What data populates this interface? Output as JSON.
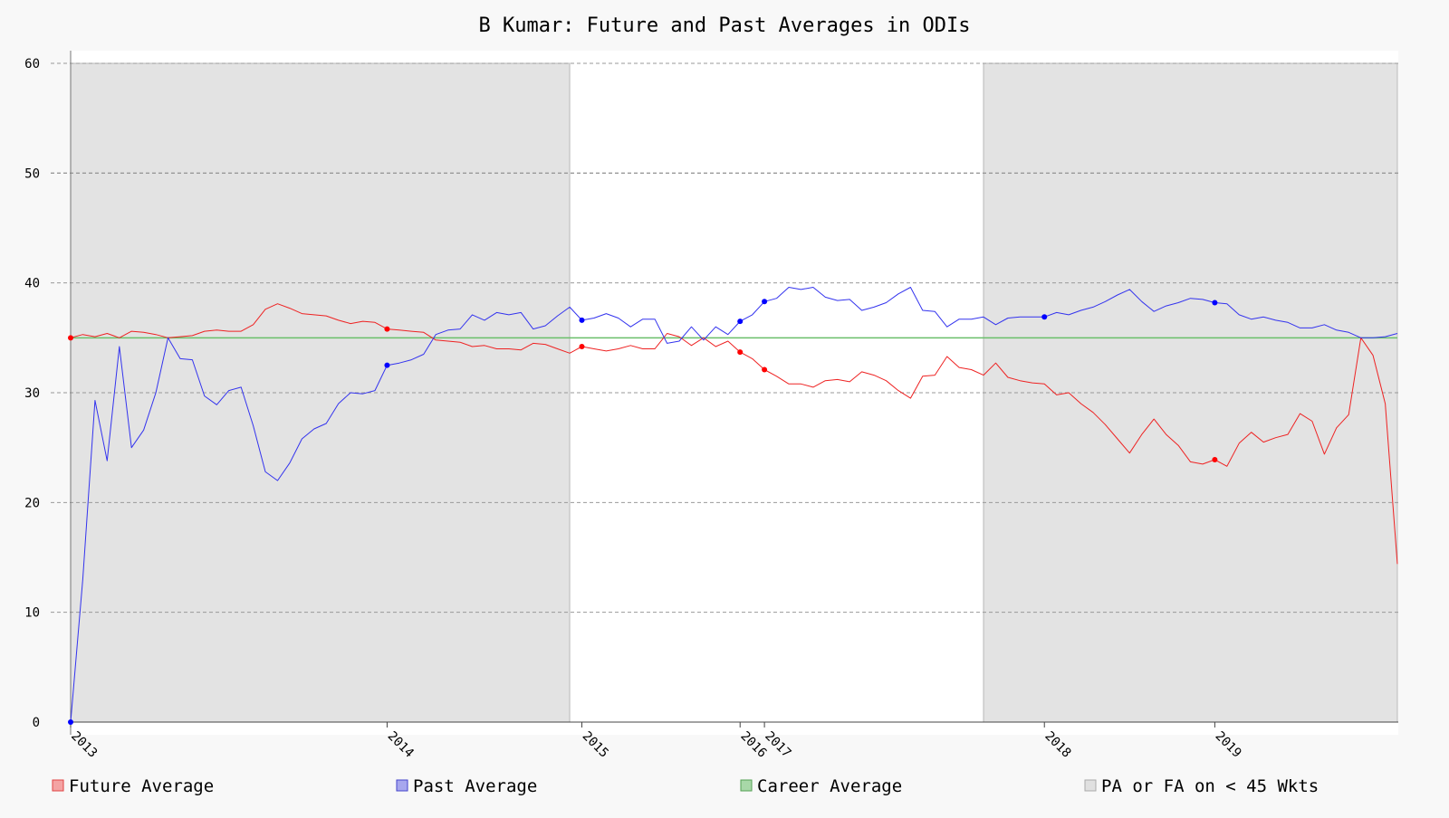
{
  "chart_data": {
    "type": "line",
    "title": "B Kumar: Future and Past Averages in ODIs",
    "ylim": [
      0,
      60
    ],
    "yticks": [
      0,
      10,
      20,
      30,
      40,
      50,
      60
    ],
    "xlim": [
      0,
      109
    ],
    "xticks": [
      {
        "label": "2013",
        "x": 0
      },
      {
        "label": "2014",
        "x": 26
      },
      {
        "label": "2015",
        "x": 42
      },
      {
        "label": "2016",
        "x": 55
      },
      {
        "label": "2017",
        "x": 57
      },
      {
        "label": "2018",
        "x": 80
      },
      {
        "label": "2019",
        "x": 94
      }
    ],
    "career_average": 35,
    "shaded_regions": [
      [
        0,
        41
      ],
      [
        75,
        109
      ]
    ],
    "series": [
      {
        "name": "Future Average",
        "color": "#ee2222",
        "values": [
          35.0,
          35.3,
          35.1,
          35.4,
          35.0,
          35.6,
          35.5,
          35.3,
          35.0,
          35.1,
          35.2,
          35.6,
          35.7,
          35.6,
          35.6,
          36.2,
          37.6,
          38.1,
          37.7,
          37.2,
          37.1,
          37.0,
          36.6,
          36.3,
          36.5,
          36.4,
          35.8,
          35.7,
          35.6,
          35.5,
          34.8,
          34.7,
          34.6,
          34.2,
          34.3,
          34.0,
          34.0,
          33.9,
          34.5,
          34.4,
          34.0,
          33.6,
          34.2,
          34.0,
          33.8,
          34.0,
          34.3,
          34.0,
          34.0,
          35.4,
          35.1,
          34.3,
          35.0,
          34.2,
          34.7,
          33.7,
          33.1,
          32.1,
          31.5,
          30.8,
          30.8,
          30.5,
          31.1,
          31.2,
          31.0,
          31.9,
          31.6,
          31.1,
          30.2,
          29.5,
          31.5,
          31.6,
          33.3,
          32.3,
          32.1,
          31.6,
          32.7,
          31.4,
          31.1,
          30.9,
          30.8,
          29.8,
          30.0,
          29.0,
          28.2,
          27.1,
          25.8,
          24.5,
          26.2,
          27.6,
          26.2,
          25.2,
          23.7,
          23.5,
          23.9,
          23.3,
          25.4,
          26.4,
          25.5,
          25.9,
          26.2,
          28.1,
          27.4,
          24.4,
          26.8,
          28.0,
          35.0,
          33.4,
          29.0,
          14.4
        ],
        "markers": [
          0,
          26,
          42,
          55,
          57,
          94
        ]
      },
      {
        "name": "Past Average",
        "color": "#3333ee",
        "values": [
          0.0,
          13.0,
          29.3,
          23.8,
          34.2,
          25.0,
          26.6,
          30.0,
          35.0,
          33.1,
          33.0,
          29.7,
          28.9,
          30.2,
          30.5,
          27.0,
          22.8,
          22.0,
          23.6,
          25.8,
          26.7,
          27.2,
          29.0,
          30.0,
          29.9,
          30.2,
          32.5,
          32.7,
          33.0,
          33.5,
          35.3,
          35.7,
          35.8,
          37.1,
          36.6,
          37.3,
          37.1,
          37.3,
          35.8,
          36.1,
          37.0,
          37.8,
          36.6,
          36.8,
          37.2,
          36.8,
          36.0,
          36.7,
          36.7,
          34.5,
          34.7,
          36.0,
          34.8,
          36.0,
          35.3,
          36.5,
          37.1,
          38.3,
          38.6,
          39.6,
          39.4,
          39.6,
          38.7,
          38.4,
          38.5,
          37.5,
          37.8,
          38.2,
          39.0,
          39.6,
          37.5,
          37.4,
          36.0,
          36.7,
          36.7,
          36.9,
          36.2,
          36.8,
          36.9,
          36.9,
          36.9,
          37.3,
          37.1,
          37.5,
          37.8,
          38.3,
          38.9,
          39.4,
          38.3,
          37.4,
          37.9,
          38.2,
          38.6,
          38.5,
          38.2,
          38.1,
          37.1,
          36.7,
          36.9,
          36.6,
          36.4,
          35.9,
          35.9,
          36.2,
          35.7,
          35.5,
          35.0,
          35.0,
          35.1,
          35.4
        ],
        "markers": [
          0,
          26,
          42,
          55,
          57,
          80,
          94
        ]
      }
    ],
    "legend": [
      {
        "name": "Future Average",
        "color": "#f4a3a3",
        "stroke": "#e04444"
      },
      {
        "name": "Past Average",
        "color": "#a7a7ee",
        "stroke": "#4444cc"
      },
      {
        "name": "Career Average",
        "color": "#a8d8a8",
        "stroke": "#55a055"
      },
      {
        "name": "PA or FA on < 45 Wkts",
        "color": "#e0e0e0",
        "stroke": "#aaaaaa"
      }
    ],
    "legend_position": "bottom",
    "grid": true,
    "colors": {
      "career": "#6abf6a",
      "shade": "#e3e3e3",
      "plot_bg": "#ffffff",
      "grid": "#999999",
      "marker_future": "#ff0000",
      "marker_past": "#0000ff"
    }
  }
}
